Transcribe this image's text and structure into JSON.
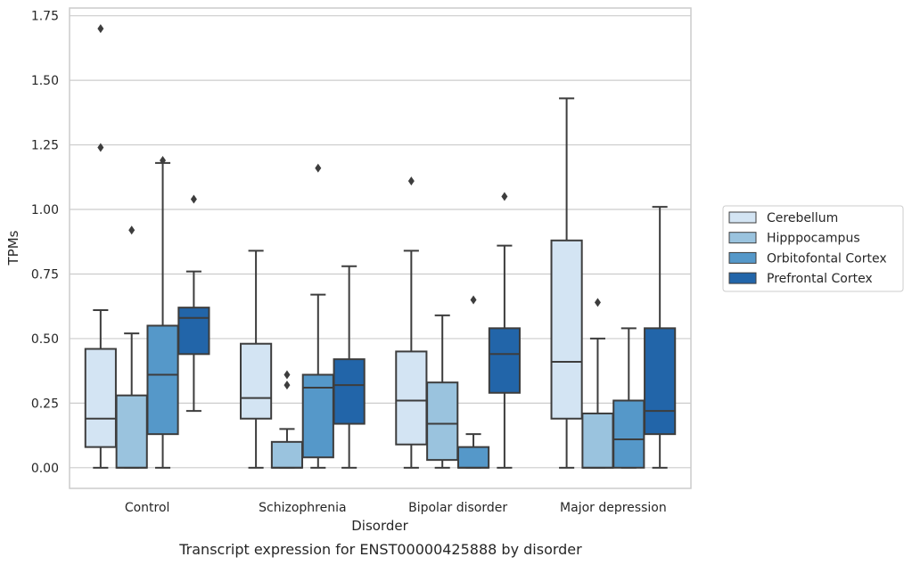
{
  "chart_data": {
    "type": "box",
    "title": "",
    "xlabel": "Disorder",
    "ylabel": "TPMs",
    "caption": "Transcript expression for ENST00000425888 by disorder",
    "ylim": [
      -0.08,
      1.78
    ],
    "yticks": [
      "0.00",
      "0.25",
      "0.50",
      "0.75",
      "1.00",
      "1.25",
      "1.50",
      "1.75"
    ],
    "grid": true,
    "legend_position": "right",
    "categories": [
      "Control",
      "Schizophrenia",
      "Bipolar disorder",
      "Major depression"
    ],
    "series": [
      {
        "name": "Cerebellum",
        "color": "#d3e4f3",
        "boxes": [
          {
            "min": 0.0,
            "q1": 0.08,
            "median": 0.19,
            "q3": 0.46,
            "max": 0.61,
            "outliers": [
              1.24,
              1.7
            ]
          },
          {
            "min": 0.0,
            "q1": 0.19,
            "median": 0.27,
            "q3": 0.48,
            "max": 0.84,
            "outliers": []
          },
          {
            "min": 0.0,
            "q1": 0.09,
            "median": 0.26,
            "q3": 0.45,
            "max": 0.84,
            "outliers": [
              1.11
            ]
          },
          {
            "min": 0.0,
            "q1": 0.19,
            "median": 0.41,
            "q3": 0.88,
            "max": 1.43,
            "outliers": []
          }
        ]
      },
      {
        "name": "Hipppocampus",
        "color": "#9ac3de",
        "boxes": [
          {
            "min": 0.0,
            "q1": 0.0,
            "median": 0.0,
            "q3": 0.28,
            "max": 0.52,
            "outliers": [
              0.92
            ]
          },
          {
            "min": 0.0,
            "q1": 0.0,
            "median": 0.0,
            "q3": 0.1,
            "max": 0.15,
            "outliers": [
              0.32,
              0.36
            ]
          },
          {
            "min": 0.0,
            "q1": 0.03,
            "median": 0.17,
            "q3": 0.33,
            "max": 0.59,
            "outliers": []
          },
          {
            "min": 0.0,
            "q1": 0.0,
            "median": 0.0,
            "q3": 0.21,
            "max": 0.5,
            "outliers": [
              0.64
            ]
          }
        ]
      },
      {
        "name": "Orbitofontal Cortex",
        "color": "#5598c9",
        "boxes": [
          {
            "min": 0.0,
            "q1": 0.13,
            "median": 0.36,
            "q3": 0.55,
            "max": 1.18,
            "outliers": [
              1.19
            ]
          },
          {
            "min": 0.0,
            "q1": 0.04,
            "median": 0.31,
            "q3": 0.36,
            "max": 0.67,
            "outliers": [
              1.16
            ]
          },
          {
            "min": 0.0,
            "q1": 0.0,
            "median": 0.0,
            "q3": 0.08,
            "max": 0.13,
            "outliers": [
              0.65
            ]
          },
          {
            "min": 0.0,
            "q1": 0.0,
            "median": 0.11,
            "q3": 0.26,
            "max": 0.54,
            "outliers": []
          }
        ]
      },
      {
        "name": "Prefrontal Cortex",
        "color": "#2265a9",
        "boxes": [
          {
            "min": 0.22,
            "q1": 0.44,
            "median": 0.58,
            "q3": 0.62,
            "max": 0.76,
            "outliers": [
              1.04
            ]
          },
          {
            "min": 0.0,
            "q1": 0.17,
            "median": 0.32,
            "q3": 0.42,
            "max": 0.78,
            "outliers": []
          },
          {
            "min": 0.0,
            "q1": 0.29,
            "median": 0.44,
            "q3": 0.54,
            "max": 0.86,
            "outliers": [
              1.05
            ]
          },
          {
            "min": 0.0,
            "q1": 0.13,
            "median": 0.22,
            "q3": 0.54,
            "max": 1.01,
            "outliers": []
          }
        ]
      }
    ]
  }
}
